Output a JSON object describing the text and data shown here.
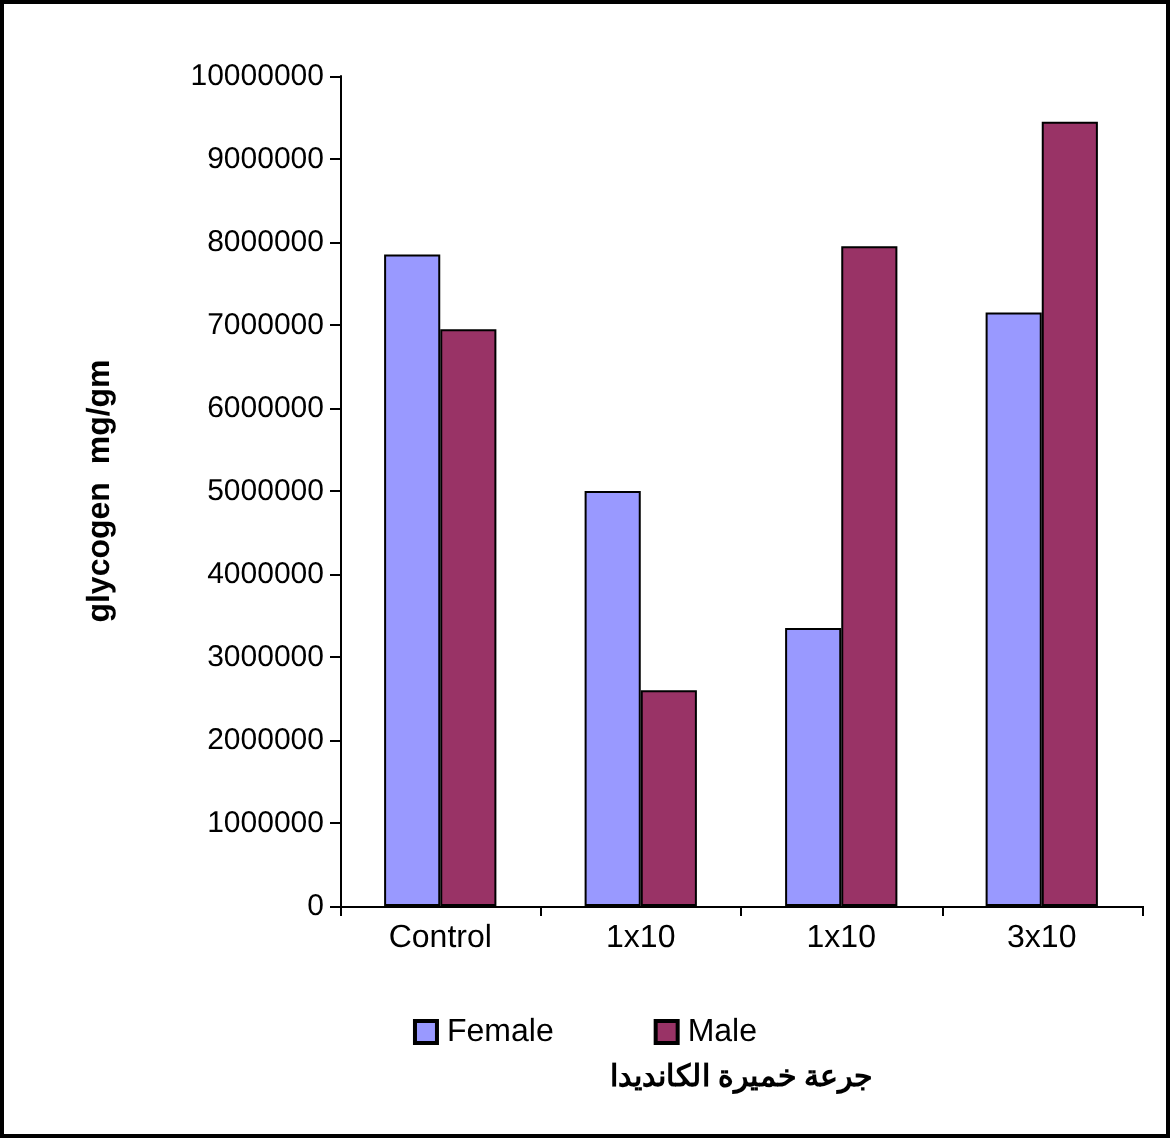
{
  "chart_data": {
    "type": "bar",
    "xlabel": "جرعة خميرة الكانديدا",
    "ylabel": "glycogen  mg/gm",
    "categories": [
      "Control",
      "1x10",
      "1x10",
      "3x10"
    ],
    "series": [
      {
        "name": "Female",
        "color": "#9999ff",
        "values": [
          7850000,
          5000000,
          3350000,
          7150000
        ]
      },
      {
        "name": "Male",
        "color": "#993366",
        "values": [
          6950000,
          2600000,
          7950000,
          9450000
        ]
      }
    ],
    "ylim": [
      0,
      10000000
    ],
    "yticks": [
      0,
      1000000,
      2000000,
      3000000,
      4000000,
      5000000,
      6000000,
      7000000,
      8000000,
      9000000,
      10000000
    ],
    "grid": false,
    "legend": "bottom"
  }
}
